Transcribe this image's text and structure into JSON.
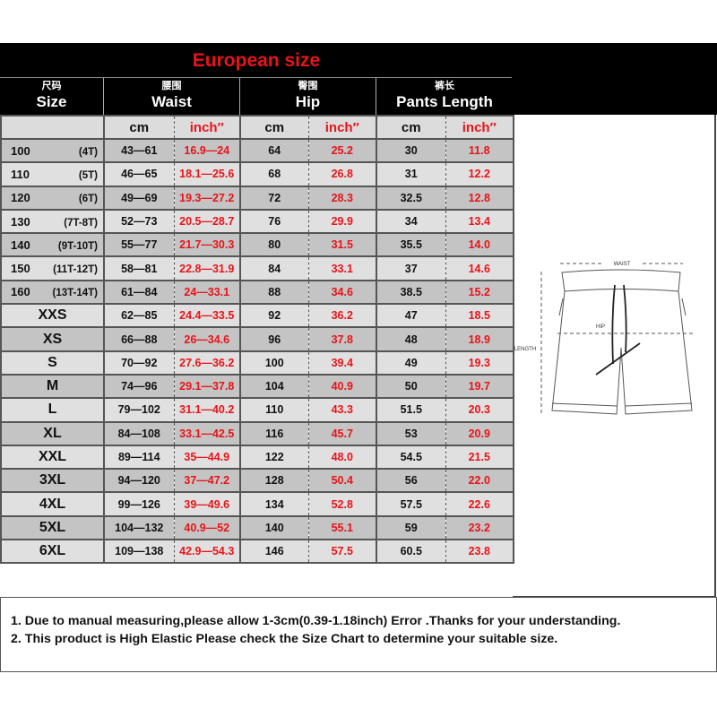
{
  "title": "European size",
  "headers": [
    {
      "cn": "尺码",
      "en": "Size"
    },
    {
      "cn": "腰围",
      "en": "Waist"
    },
    {
      "cn": "臀围",
      "en": "Hip"
    },
    {
      "cn": "裤长",
      "en": "Pants Length"
    }
  ],
  "subheaders": [
    "",
    "cm",
    "inch″",
    "cm",
    "inch″",
    "cm",
    "inch″"
  ],
  "rows": [
    {
      "size": "100",
      "age": "(4T)",
      "waist_cm": "43—61",
      "waist_in": "16.9—24",
      "hip_cm": "64",
      "hip_in": "25.2",
      "len_cm": "30",
      "len_in": "11.8"
    },
    {
      "size": "110",
      "age": "(5T)",
      "waist_cm": "46—65",
      "waist_in": "18.1—25.6",
      "hip_cm": "68",
      "hip_in": "26.8",
      "len_cm": "31",
      "len_in": "12.2"
    },
    {
      "size": "120",
      "age": "(6T)",
      "waist_cm": "49—69",
      "waist_in": "19.3—27.2",
      "hip_cm": "72",
      "hip_in": "28.3",
      "len_cm": "32.5",
      "len_in": "12.8"
    },
    {
      "size": "130",
      "age": "(7T-8T)",
      "waist_cm": "52—73",
      "waist_in": "20.5—28.7",
      "hip_cm": "76",
      "hip_in": "29.9",
      "len_cm": "34",
      "len_in": "13.4"
    },
    {
      "size": "140",
      "age": "(9T-10T)",
      "waist_cm": "55—77",
      "waist_in": "21.7—30.3",
      "hip_cm": "80",
      "hip_in": "31.5",
      "len_cm": "35.5",
      "len_in": "14.0"
    },
    {
      "size": "150",
      "age": "(11T-12T)",
      "waist_cm": "58—81",
      "waist_in": "22.8—31.9",
      "hip_cm": "84",
      "hip_in": "33.1",
      "len_cm": "37",
      "len_in": "14.6"
    },
    {
      "size": "160",
      "age": "(13T-14T)",
      "waist_cm": "61—84",
      "waist_in": "24—33.1",
      "hip_cm": "88",
      "hip_in": "34.6",
      "len_cm": "38.5",
      "len_in": "15.2"
    },
    {
      "size": "XXS",
      "waist_cm": "62—85",
      "waist_in": "24.4—33.5",
      "hip_cm": "92",
      "hip_in": "36.2",
      "len_cm": "47",
      "len_in": "18.5"
    },
    {
      "size": "XS",
      "waist_cm": "66—88",
      "waist_in": "26—34.6",
      "hip_cm": "96",
      "hip_in": "37.8",
      "len_cm": "48",
      "len_in": "18.9"
    },
    {
      "size": "S",
      "waist_cm": "70—92",
      "waist_in": "27.6—36.2",
      "hip_cm": "100",
      "hip_in": "39.4",
      "len_cm": "49",
      "len_in": "19.3"
    },
    {
      "size": "M",
      "waist_cm": "74—96",
      "waist_in": "29.1—37.8",
      "hip_cm": "104",
      "hip_in": "40.9",
      "len_cm": "50",
      "len_in": "19.7"
    },
    {
      "size": "L",
      "waist_cm": "79—102",
      "waist_in": "31.1—40.2",
      "hip_cm": "110",
      "hip_in": "43.3",
      "len_cm": "51.5",
      "len_in": "20.3"
    },
    {
      "size": "XL",
      "waist_cm": "84—108",
      "waist_in": "33.1—42.5",
      "hip_cm": "116",
      "hip_in": "45.7",
      "len_cm": "53",
      "len_in": "20.9"
    },
    {
      "size": "XXL",
      "waist_cm": "89—114",
      "waist_in": "35—44.9",
      "hip_cm": "122",
      "hip_in": "48.0",
      "len_cm": "54.5",
      "len_in": "21.5"
    },
    {
      "size": "3XL",
      "waist_cm": "94—120",
      "waist_in": "37—47.2",
      "hip_cm": "128",
      "hip_in": "50.4",
      "len_cm": "56",
      "len_in": "22.0"
    },
    {
      "size": "4XL",
      "waist_cm": "99—126",
      "waist_in": "39—49.6",
      "hip_cm": "134",
      "hip_in": "52.8",
      "len_cm": "57.5",
      "len_in": "22.6"
    },
    {
      "size": "5XL",
      "waist_cm": "104—132",
      "waist_in": "40.9—52",
      "hip_cm": "140",
      "hip_in": "55.1",
      "len_cm": "59",
      "len_in": "23.2"
    },
    {
      "size": "6XL",
      "waist_cm": "109—138",
      "waist_in": "42.9—54.3",
      "hip_cm": "146",
      "hip_in": "57.5",
      "len_cm": "60.5",
      "len_in": "23.8"
    }
  ],
  "diagram": {
    "waist_label": "WAIST",
    "hip_label": "HIP",
    "length_label": "LENGTH"
  },
  "notes": [
    "1. Due to manual measuring,please allow 1-3cm(0.39-1.18inch) Error .Thanks for your understanding.",
    "2. This product is High Elastic Please check the Size Chart to determine your suitable size."
  ],
  "colors": {
    "accent_red": "#e8141a",
    "header_bg": "#000000",
    "row_dark": "#c4c4c4",
    "row_light": "#e0e0e0"
  }
}
